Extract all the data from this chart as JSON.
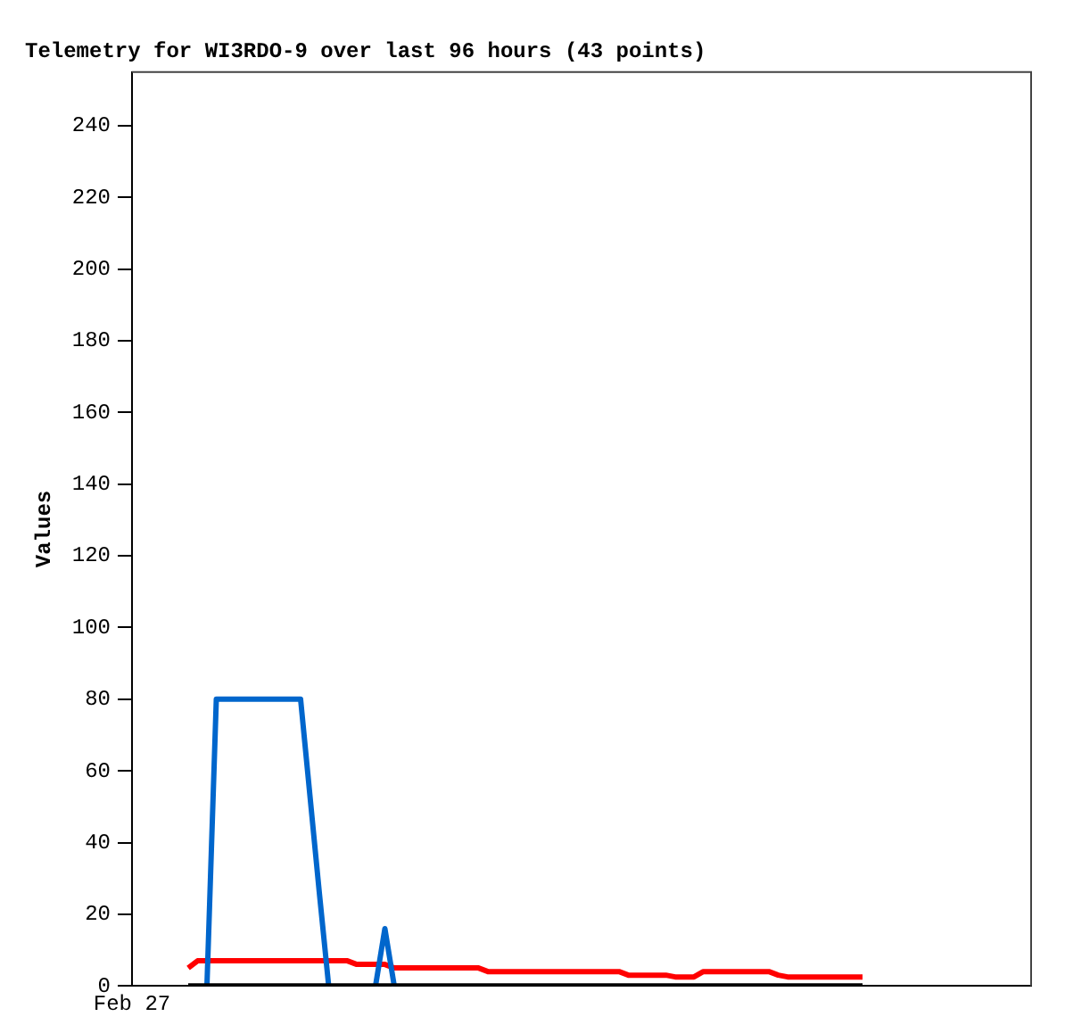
{
  "chart_data": {
    "type": "line",
    "title": "Telemetry for WI3RDO-9 over last 96 hours (43 points)",
    "ylabel": "Values",
    "categories": [
      "Feb 27",
      null,
      null,
      null,
      null,
      null,
      null,
      null,
      null,
      null,
      null,
      null,
      null,
      null,
      null,
      null,
      null,
      null,
      null,
      null,
      null,
      null,
      null,
      null,
      null,
      null,
      null,
      null,
      null,
      null,
      null,
      null,
      null,
      null,
      null,
      null,
      null,
      null,
      null,
      null,
      null,
      null,
      null,
      null,
      null,
      null,
      null,
      null,
      null,
      null,
      null,
      null,
      null,
      null,
      null,
      null,
      null,
      null,
      null,
      null,
      null,
      null,
      null,
      null,
      null,
      null,
      null,
      null,
      null,
      null,
      null,
      null,
      null,
      null,
      null,
      null,
      null,
      null,
      null,
      null,
      null,
      null,
      null,
      null,
      null,
      null,
      null,
      null,
      null,
      null,
      null,
      null,
      null,
      null,
      null,
      null,
      null
    ],
    "ylim": [
      0,
      255
    ],
    "yticks": [
      0,
      20,
      40,
      60,
      80,
      100,
      120,
      140,
      160,
      180,
      200,
      220,
      240
    ],
    "grid": false,
    "legend": false,
    "marker": "none",
    "line_style": "solid",
    "series": [
      {
        "color": "#000000",
        "values": [
          null,
          null,
          null,
          null,
          null,
          null,
          0,
          0,
          0,
          0,
          0,
          0,
          0,
          0,
          0,
          0,
          0,
          0,
          0,
          0,
          0,
          0,
          0,
          0,
          0,
          0,
          0,
          0,
          0,
          0,
          0,
          0,
          0,
          0,
          0,
          0,
          0,
          0,
          0,
          0,
          0,
          0,
          0,
          0,
          0,
          0,
          0,
          0,
          0,
          0,
          0,
          0,
          0,
          0,
          0,
          0,
          0,
          0,
          0,
          0,
          0,
          0,
          0,
          0,
          0,
          0,
          0,
          0,
          0,
          0,
          0,
          0,
          0,
          0,
          0,
          0,
          0,
          0,
          0,
          null,
          null,
          null,
          null,
          null,
          null,
          null,
          null,
          null,
          null,
          null,
          null,
          null,
          null,
          null,
          null,
          null,
          null
        ]
      },
      {
        "color": "#0066cc",
        "values": [
          null,
          null,
          null,
          null,
          null,
          null,
          null,
          null,
          0,
          80,
          80,
          80,
          80,
          80,
          80,
          80,
          80,
          80,
          80,
          53,
          26,
          0,
          null,
          null,
          null,
          null,
          0,
          16,
          0,
          null,
          null,
          null,
          null,
          null,
          null,
          null,
          null,
          null,
          null,
          null,
          null,
          null,
          null,
          null,
          null,
          null,
          null,
          null,
          null,
          null,
          null,
          null,
          null,
          null,
          null,
          null,
          null,
          null,
          null,
          null,
          null,
          null,
          null,
          null,
          null,
          null,
          null,
          null,
          null,
          null,
          null,
          null,
          null,
          null,
          null,
          null,
          null,
          null,
          null,
          null,
          null,
          null,
          null,
          null,
          null,
          null,
          null,
          null,
          null,
          null,
          null,
          null,
          null,
          null,
          null,
          null,
          null
        ]
      },
      {
        "color": "#ff0000",
        "values": [
          null,
          null,
          null,
          null,
          null,
          null,
          5,
          7,
          7,
          7,
          7,
          7,
          7,
          7,
          7,
          7,
          7,
          7,
          7,
          7,
          7,
          7,
          7,
          7,
          6,
          6,
          6,
          6,
          5,
          5,
          5,
          5,
          5,
          5,
          5,
          5,
          5,
          5,
          4,
          4,
          4,
          4,
          4,
          4,
          4,
          4,
          4,
          4,
          4,
          4,
          4,
          4,
          4,
          3,
          3,
          3,
          3,
          3,
          2.5,
          2.5,
          2.5,
          4,
          4,
          4,
          4,
          4,
          4,
          4,
          4,
          3,
          2.5,
          2.5,
          2.5,
          2.5,
          2.5,
          2.5,
          2.5,
          2.5,
          2.5,
          null,
          null,
          null,
          null,
          null,
          null,
          null,
          null,
          null,
          null,
          null,
          null,
          null,
          null,
          null,
          null,
          null,
          null
        ]
      }
    ]
  }
}
